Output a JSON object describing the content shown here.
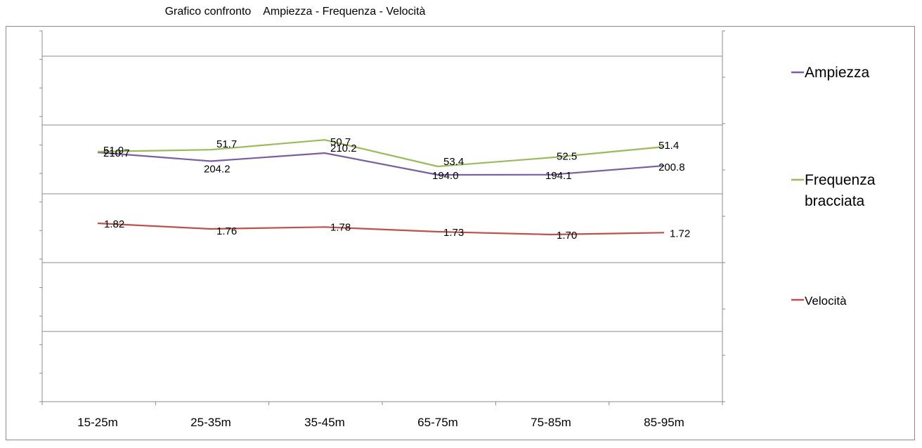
{
  "title": "Grafico confronto    Ampiezza - Frequenza - Velocità",
  "chart_data": {
    "type": "line",
    "title": "Grafico confronto    Ampiezza - Frequenza - Velocità",
    "categories": [
      "15-25m",
      "25-35m",
      "35-45m",
      "65-75m",
      "75-85m",
      "85-95m"
    ],
    "grid": true,
    "legend_position": "right",
    "series": [
      {
        "name": "Ampiezza",
        "color": "#7b5fa1",
        "values": [
          210.7,
          204.2,
          210.2,
          194.0,
          194.1,
          200.8
        ],
        "labels": [
          "210.7",
          "204.2",
          "210.2",
          "194.0",
          "194.1",
          "200.8"
        ]
      },
      {
        "name": "Frequenza bracciata",
        "color": "#9bbb59",
        "values": [
          51.9,
          51.7,
          50.7,
          53.4,
          52.5,
          51.4
        ],
        "labels": [
          "51.9",
          "51.7",
          "50.7",
          "53.4",
          "52.5",
          "51.4"
        ]
      },
      {
        "name": "Velocità",
        "color": "#c0504d",
        "values": [
          1.82,
          1.76,
          1.78,
          1.73,
          1.7,
          1.72
        ],
        "labels": [
          "1.82",
          "1.76",
          "1.78",
          "1.73",
          "1.70",
          "1.72"
        ]
      }
    ]
  }
}
